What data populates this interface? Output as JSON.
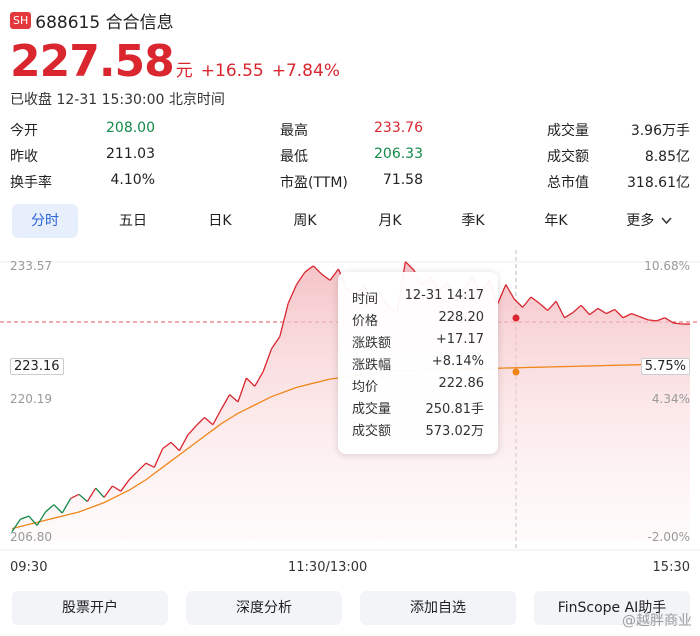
{
  "header": {
    "badge": "SH",
    "code_name": "688615 合合信息"
  },
  "quote": {
    "price": "227.58",
    "unit": "元",
    "change": "+16.55",
    "change_pct": "+7.84%",
    "status": "已收盘 12-31 15:30:00 北京时间"
  },
  "stats": [
    {
      "label": "今开",
      "value": "208.00",
      "tone": "green"
    },
    {
      "label": "最高",
      "value": "233.76",
      "tone": "red"
    },
    {
      "label": "成交量",
      "value": "3.96万手",
      "tone": "dark"
    },
    {
      "label": "昨收",
      "value": "211.03",
      "tone": "dark"
    },
    {
      "label": "最低",
      "value": "206.33",
      "tone": "green"
    },
    {
      "label": "成交额",
      "value": "8.85亿",
      "tone": "dark"
    },
    {
      "label": "换手率",
      "value": "4.10%",
      "tone": "dark"
    },
    {
      "label": "市盈(TTM)",
      "value": "71.58",
      "tone": "dark"
    },
    {
      "label": "总市值",
      "value": "318.61亿",
      "tone": "dark"
    }
  ],
  "tabs": [
    "分时",
    "五日",
    "日K",
    "周K",
    "月K",
    "季K",
    "年K",
    "更多"
  ],
  "active_tab": "分时",
  "chart_axis": {
    "y_left": [
      "233.57",
      "223.16",
      "220.19",
      "206.80"
    ],
    "y_right": [
      "10.68%",
      "5.75%",
      "4.34%",
      "-2.00%"
    ],
    "x": [
      "09:30",
      "11:30/13:00",
      "15:30"
    ]
  },
  "tooltip": [
    {
      "k": "时间",
      "v": "12-31 14:17",
      "tone": "dark"
    },
    {
      "k": "价格",
      "v": "228.20",
      "tone": "red"
    },
    {
      "k": "涨跌额",
      "v": "+17.17",
      "tone": "red"
    },
    {
      "k": "涨跌幅",
      "v": "+8.14%",
      "tone": "red"
    },
    {
      "k": "均价",
      "v": "222.86",
      "tone": "red"
    },
    {
      "k": "成交量",
      "v": "250.81手",
      "tone": "dark"
    },
    {
      "k": "成交额",
      "v": "573.02万",
      "tone": "dark"
    }
  ],
  "buttons": [
    "股票开户",
    "深度分析",
    "添加自选",
    "FinScope AI助手"
  ],
  "watermark": "@越胖商业",
  "colors": {
    "up": "#d9262f",
    "down": "#128a48",
    "avg": "#f08519",
    "accent": "#2b63d9"
  },
  "icons": {
    "more": "chevron-down-icon"
  },
  "chart_data": {
    "type": "line",
    "ylim": [
      206.8,
      233.57
    ],
    "prev_close": 211.03,
    "series": [
      {
        "values": [
          207.6,
          208.8,
          209.1,
          208.2,
          209.5,
          210.2,
          209.4,
          210.8,
          211.2,
          210.5,
          211.8,
          210.9,
          212.0,
          211.5,
          212.6,
          213.4,
          214.2,
          213.8,
          215.6,
          216.2,
          215.4,
          216.9,
          217.8,
          218.6,
          217.9,
          219.4,
          220.8,
          220.1,
          222.4,
          221.6,
          223.0,
          225.2,
          226.4,
          229.6,
          231.4,
          232.6,
          233.2,
          232.4,
          231.8,
          232.9,
          231.0,
          230.4,
          231.2,
          229.9,
          230.6,
          229.2,
          228.7,
          233.6,
          232.8,
          231.4,
          232.2,
          230.8,
          231.6,
          229.8,
          231.0,
          232.1,
          230.6,
          231.8,
          229.5,
          231.4,
          230.0,
          229.2,
          230.2,
          229.6,
          228.9,
          229.8,
          228.2,
          228.7,
          229.4,
          228.5,
          229.1,
          228.6,
          229.0,
          228.2,
          228.6,
          228.3,
          228.0,
          227.9,
          228.2,
          227.7,
          227.6,
          227.58
        ]
      },
      {
        "values": [
          207.9,
          208.1,
          208.3,
          208.5,
          208.7,
          208.9,
          209.1,
          209.3,
          209.5,
          209.8,
          210.1,
          210.4,
          210.8,
          211.2,
          211.6,
          212.1,
          212.6,
          213.2,
          213.8,
          214.4,
          215.0,
          215.6,
          216.2,
          216.8,
          217.4,
          218.0,
          218.5,
          219.0,
          219.4,
          219.8,
          220.2,
          220.6,
          220.9,
          221.2,
          221.5,
          221.7,
          221.9,
          222.1,
          222.3,
          222.4,
          222.55,
          222.65,
          222.75,
          222.86,
          222.95,
          223.02,
          223.08,
          223.12,
          223.14,
          223.16,
          223.18,
          223.2,
          223.22,
          223.24,
          223.26,
          223.28,
          223.3,
          223.32,
          223.34,
          223.36,
          223.38,
          223.4,
          223.42,
          223.44,
          223.46,
          223.48,
          223.5,
          223.52,
          223.54,
          223.56,
          223.58,
          223.6,
          223.62,
          223.64,
          223.66,
          223.68,
          223.7,
          223.72,
          223.74,
          223.76,
          223.78,
          223.8
        ]
      }
    ]
  }
}
